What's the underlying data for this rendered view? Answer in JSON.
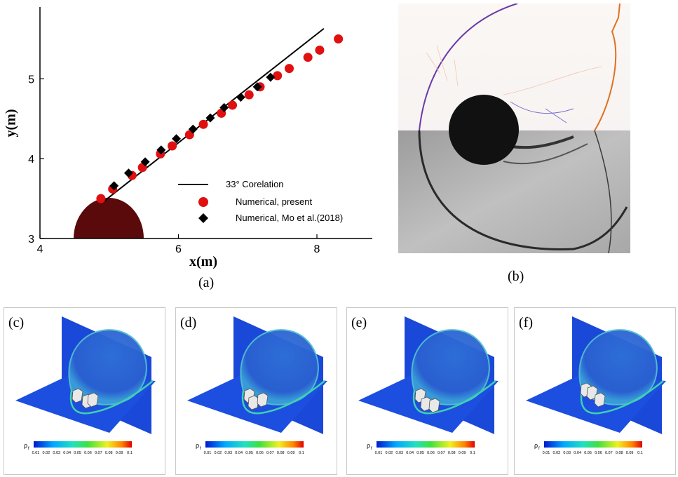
{
  "figure": {
    "panel_labels": {
      "a": "(a)",
      "b": "(b)",
      "c": "(c)",
      "d": "(d)",
      "e": "(e)",
      "f": "(f)"
    },
    "colorbar": {
      "symbol": "ρ",
      "subscript": "f",
      "ticks": [
        "0.01",
        "0.02",
        "0.03",
        "0.04",
        "0.05",
        "0.06",
        "0.07",
        "0.08",
        "0.09",
        "0.1"
      ]
    },
    "colors": {
      "present_marker": "#e01010",
      "mo_marker": "#000000",
      "correlation_line": "#000000",
      "cylinder": "#5a0a0a",
      "domain_blue": "#1a48d8",
      "shock_orange": "#e07020",
      "shock_purple": "#6a3aa8"
    }
  },
  "chart_data": {
    "type": "scatter",
    "xlabel": "x(m)",
    "ylabel": "y(m)",
    "xlim": [
      4,
      8.8
    ],
    "ylim": [
      3,
      5.9
    ],
    "xticks": [
      "4",
      "6",
      "8"
    ],
    "yticks": [
      "3",
      "4",
      "5"
    ],
    "grid": false,
    "legend_position": "bottom-right",
    "series": [
      {
        "name": "33° Corelation",
        "kind": "line",
        "x": [
          4.9,
          8.1
        ],
        "y": [
          3.45,
          5.63
        ]
      },
      {
        "name": "Numerical, present",
        "kind": "circle",
        "x": [
          4.88,
          5.05,
          5.33,
          5.48,
          5.74,
          5.91,
          6.16,
          6.36,
          6.62,
          6.78,
          7.02,
          7.18,
          7.43,
          7.6,
          7.87,
          8.04,
          8.31
        ],
        "y": [
          3.5,
          3.62,
          3.79,
          3.89,
          4.06,
          4.16,
          4.3,
          4.43,
          4.57,
          4.67,
          4.8,
          4.9,
          5.04,
          5.13,
          5.27,
          5.36,
          5.5
        ]
      },
      {
        "name": "Numerical, Mo et al.(2018)",
        "kind": "diamond",
        "x": [
          5.07,
          5.28,
          5.52,
          5.75,
          5.97,
          6.21,
          6.46,
          6.66,
          6.9,
          7.14,
          7.33
        ],
        "y": [
          3.66,
          3.82,
          3.96,
          4.11,
          4.25,
          4.37,
          4.51,
          4.64,
          4.77,
          4.9,
          5.02
        ]
      }
    ]
  }
}
